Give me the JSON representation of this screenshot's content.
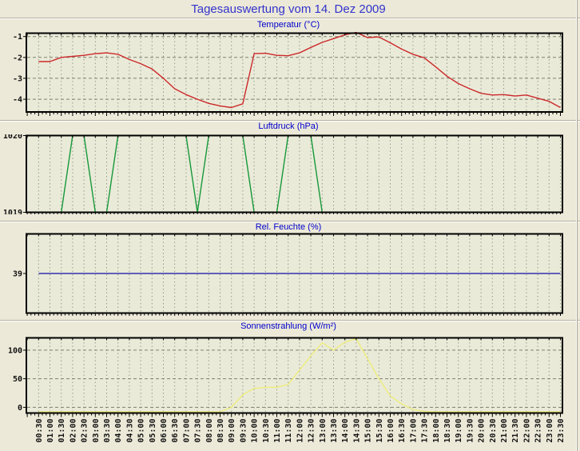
{
  "page_title": "Tagesauswertung vom 14. Dez 2009",
  "colors": {
    "page_bg": "#ece9d8",
    "plot_bg": "#eaead9",
    "plot_border": "#000000",
    "grid_vertical": "#9a9a8c",
    "grid_horizontal": "#80806e",
    "main_title": "#3333cc",
    "chart_title": "#0000cc",
    "axis_text": "#111111",
    "temperature_line": "#cc2929",
    "pressure_line": "#169939",
    "humidity_line": "#3333aa",
    "radiation_line": "#eded7d"
  },
  "time_labels": [
    "00:30",
    "01:00",
    "01:30",
    "02:00",
    "02:30",
    "03:00",
    "03:30",
    "04:00",
    "04:30",
    "05:00",
    "05:30",
    "06:00",
    "06:30",
    "07:00",
    "07:30",
    "08:00",
    "08:30",
    "09:00",
    "09:30",
    "10:00",
    "10:30",
    "11:00",
    "11:30",
    "12:00",
    "12:30",
    "13:00",
    "13:30",
    "14:00",
    "14:30",
    "15:00",
    "15:30",
    "16:00",
    "16:30",
    "17:00",
    "17:30",
    "18:00",
    "18:30",
    "19:00",
    "19:30",
    "20:00",
    "20:30",
    "21:00",
    "21:30",
    "22:00",
    "22:30",
    "23:00",
    "23:30"
  ],
  "chart_data": [
    {
      "type": "line",
      "id": "temperature",
      "title": "Temperatur (°C)",
      "ylabel": "°C",
      "color": "#cc2929",
      "ylim": [
        -4.61,
        -0.84
      ],
      "yticks": [
        {
          "value": -1,
          "label": "-1"
        },
        {
          "value": -2,
          "label": "-2"
        },
        {
          "value": -3,
          "label": "-3"
        },
        {
          "value": -4,
          "label": "-4"
        }
      ],
      "grid_y": [
        -1,
        -2,
        -3,
        -4
      ],
      "values": [
        -2.2,
        -2.2,
        -2.0,
        -1.95,
        -1.9,
        -1.82,
        -1.78,
        -1.85,
        -2.1,
        -2.3,
        -2.55,
        -3.0,
        -3.5,
        -3.78,
        -4.0,
        -4.2,
        -4.32,
        -4.4,
        -4.22,
        -1.82,
        -1.8,
        -1.9,
        -1.92,
        -1.78,
        -1.52,
        -1.28,
        -1.1,
        -0.92,
        -0.8,
        -1.05,
        -1.02,
        -1.3,
        -1.6,
        -1.85,
        -2.02,
        -2.45,
        -2.9,
        -3.25,
        -3.5,
        -3.72,
        -3.8,
        -3.78,
        -3.85,
        -3.8,
        -3.95,
        -4.1,
        -4.4
      ]
    },
    {
      "type": "line",
      "id": "pressure",
      "title": "Luftdruck (hPa)",
      "ylabel": "hPa",
      "color": "#169939",
      "ylim": [
        1019,
        1020
      ],
      "yticks": [
        {
          "value": 1020,
          "label": "1020"
        },
        {
          "value": 1019,
          "label": "1019"
        }
      ],
      "grid_y": [],
      "values": [
        1019,
        1019,
        1019,
        1020,
        1020,
        1019,
        1019,
        1020,
        1020,
        1020,
        1020,
        1020,
        1020,
        1020,
        1019,
        1020,
        1020,
        1020,
        1020,
        1019,
        1019,
        1019,
        1020,
        1020,
        1020,
        1019,
        1019,
        1019,
        1019,
        1019,
        1019,
        1019,
        1019,
        1019,
        1019,
        1019,
        1019,
        1019,
        1019,
        1019,
        1019,
        1019,
        1019,
        1019,
        1019,
        1019,
        1019
      ]
    },
    {
      "type": "line",
      "id": "humidity",
      "title": "Rel. Feuchte (%)",
      "ylabel": "%",
      "color": "#3333aa",
      "ylim": [
        0,
        78
      ],
      "yticks": [
        {
          "value": 39,
          "label": "39"
        }
      ],
      "grid_y": [],
      "values": [
        39,
        39,
        39,
        39,
        39,
        39,
        39,
        39,
        39,
        39,
        39,
        39,
        39,
        39,
        39,
        39,
        39,
        39,
        39,
        39,
        39,
        39,
        39,
        39,
        39,
        39,
        39,
        39,
        39,
        39,
        39,
        39,
        39,
        39,
        39,
        39,
        39,
        39,
        39,
        39,
        39,
        39,
        39,
        39,
        39,
        39,
        39
      ]
    },
    {
      "type": "line",
      "id": "radiation",
      "title": "Sonnenstrahlung (W/m²)",
      "ylabel": "W/m²",
      "color": "#eded7d",
      "ylim": [
        -10,
        121.5
      ],
      "yticks": [
        {
          "value": 100,
          "label": "100"
        },
        {
          "value": 50,
          "label": "50"
        },
        {
          "value": 0,
          "label": "0"
        }
      ],
      "grid_y": [
        100,
        50,
        0
      ],
      "values": [
        -8,
        -8,
        -8,
        -8,
        -8,
        -8,
        -8,
        -8,
        -8,
        -8,
        -8,
        -8,
        -8,
        -8,
        -8,
        -8,
        -8,
        0,
        22,
        33,
        35,
        35,
        40,
        65,
        90,
        113,
        100,
        114,
        120,
        85,
        50,
        20,
        6,
        -4,
        -7,
        -8,
        -8,
        -8,
        -8,
        -8,
        -8,
        -8,
        -8,
        -8,
        -8,
        -8,
        -8
      ]
    }
  ]
}
